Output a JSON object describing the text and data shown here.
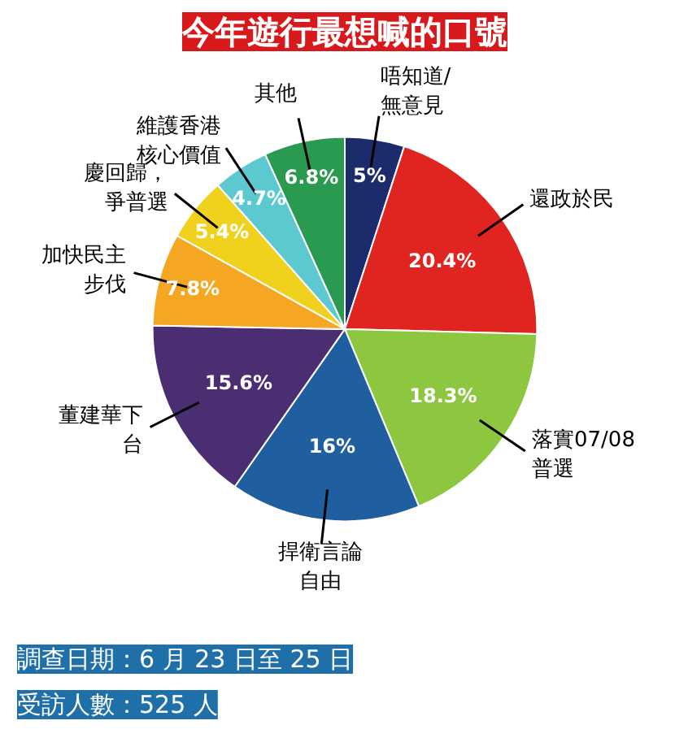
{
  "chart_data": {
    "type": "pie",
    "title": "今年遊行最想喊的口號",
    "categories": [
      "唔知道/無意見",
      "還政於民",
      "落實07/08普選",
      "捍衛言論自由",
      "董建華下台",
      "加快民主步伐",
      "慶回歸，爭普選",
      "維護香港核心價值",
      "其他"
    ],
    "values": [
      5,
      20.4,
      18.3,
      16,
      15.6,
      7.8,
      5.4,
      4.7,
      6.8
    ],
    "value_labels": [
      "5%",
      "20.4%",
      "18.3%",
      "16%",
      "15.6%",
      "7.8%",
      "5.4%",
      "4.7%",
      "6.8%"
    ],
    "colors": [
      "#1c2b6b",
      "#e0241f",
      "#8dc63f",
      "#1f5fa0",
      "#4b2d72",
      "#f5a623",
      "#f0d21e",
      "#5cc8d0",
      "#2a9a50"
    ],
    "annotations": [
      "調查日期：6 月 23 日至 25 日",
      "受訪人數：525 人"
    ]
  }
}
